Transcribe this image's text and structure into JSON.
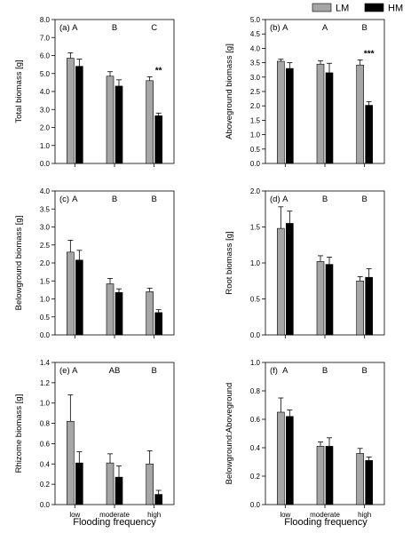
{
  "legend": {
    "placement": "top-right",
    "entries": [
      {
        "label": "LM",
        "color": "#a6a6a6"
      },
      {
        "label": "HM",
        "color": "#000000"
      }
    ]
  },
  "x_axis_title": "Flooding frequency",
  "chart_data": [
    {
      "type": "bar",
      "panel": "(a)",
      "ylabel": "Total biomass [g]",
      "ylim": [
        0,
        8
      ],
      "yticks": [
        "0.0",
        "1.0",
        "2.0",
        "3.0",
        "4.0",
        "5.0",
        "6.0",
        "7.0",
        "8.0"
      ],
      "categories": [
        "low",
        "moderate",
        "high"
      ],
      "show_category_labels": false,
      "letters": [
        "A",
        "B",
        "C"
      ],
      "significance": [
        "",
        "",
        "**"
      ],
      "series": [
        {
          "name": "LM",
          "color": "#a6a6a6",
          "values": [
            5.85,
            4.85,
            4.6
          ],
          "errors": [
            0.3,
            0.25,
            0.22
          ]
        },
        {
          "name": "HM",
          "color": "#000000",
          "values": [
            5.4,
            4.3,
            2.65
          ],
          "errors": [
            0.4,
            0.35,
            0.15
          ]
        }
      ]
    },
    {
      "type": "bar",
      "panel": "(b)",
      "ylabel": "Aboveground biomass [g]",
      "ylim": [
        0,
        5
      ],
      "yticks": [
        "0.0",
        "0.5",
        "1.0",
        "1.5",
        "2.0",
        "2.5",
        "3.0",
        "3.5",
        "4.0",
        "4.5",
        "5.0"
      ],
      "categories": [
        "low",
        "moderate",
        "high"
      ],
      "show_category_labels": false,
      "letters": [
        "A",
        "A",
        "B"
      ],
      "significance": [
        "",
        "",
        "***"
      ],
      "series": [
        {
          "name": "LM",
          "color": "#a6a6a6",
          "values": [
            3.55,
            3.45,
            3.42
          ],
          "errors": [
            0.07,
            0.12,
            0.18
          ]
        },
        {
          "name": "HM",
          "color": "#000000",
          "values": [
            3.3,
            3.15,
            2.02
          ],
          "errors": [
            0.2,
            0.33,
            0.13
          ]
        }
      ]
    },
    {
      "type": "bar",
      "panel": "(c)",
      "ylabel": "Belowground biomass [g]",
      "ylim": [
        0,
        4
      ],
      "yticks": [
        "0.0",
        "0.5",
        "1.0",
        "1.5",
        "2.0",
        "2.5",
        "3.0",
        "3.5",
        "4.0"
      ],
      "categories": [
        "low",
        "moderate",
        "high"
      ],
      "show_category_labels": false,
      "letters": [
        "A",
        "B",
        "B"
      ],
      "significance": [
        "",
        "",
        ""
      ],
      "series": [
        {
          "name": "LM",
          "color": "#a6a6a6",
          "values": [
            2.3,
            1.42,
            1.2
          ],
          "errors": [
            0.33,
            0.15,
            0.1
          ]
        },
        {
          "name": "HM",
          "color": "#000000",
          "values": [
            2.08,
            1.18,
            0.62
          ],
          "errors": [
            0.27,
            0.1,
            0.08
          ]
        }
      ]
    },
    {
      "type": "bar",
      "panel": "(d)",
      "ylabel": "Root biomass [g]",
      "ylim": [
        0,
        2
      ],
      "yticks": [
        "0.0",
        "0.5",
        "1.0",
        "1.5",
        "2.0"
      ],
      "categories": [
        "low",
        "moderate",
        "high"
      ],
      "show_category_labels": false,
      "letters": [
        "A",
        "B",
        "B"
      ],
      "significance": [
        "",
        "",
        ""
      ],
      "series": [
        {
          "name": "LM",
          "color": "#a6a6a6",
          "values": [
            1.48,
            1.02,
            0.75
          ],
          "errors": [
            0.3,
            0.08,
            0.06
          ]
        },
        {
          "name": "HM",
          "color": "#000000",
          "values": [
            1.55,
            0.98,
            0.8
          ],
          "errors": [
            0.17,
            0.1,
            0.12
          ]
        }
      ]
    },
    {
      "type": "bar",
      "panel": "(e)",
      "ylabel": "Rhizome biomass [g]",
      "ylim": [
        0,
        1.4
      ],
      "yticks": [
        "0.0",
        "0.2",
        "0.4",
        "0.6",
        "0.8",
        "1.0",
        "1.2",
        "1.4"
      ],
      "categories": [
        "low",
        "moderate",
        "high"
      ],
      "show_category_labels": true,
      "letters": [
        "A",
        "AB",
        "B"
      ],
      "significance": [
        "",
        "",
        ""
      ],
      "series": [
        {
          "name": "LM",
          "color": "#a6a6a6",
          "values": [
            0.82,
            0.41,
            0.4
          ],
          "errors": [
            0.26,
            0.09,
            0.13
          ]
        },
        {
          "name": "HM",
          "color": "#000000",
          "values": [
            0.41,
            0.27,
            0.1
          ],
          "errors": [
            0.11,
            0.11,
            0.04
          ]
        }
      ]
    },
    {
      "type": "bar",
      "panel": "(f)",
      "ylabel": "Belowground:Aboveground",
      "ylim": [
        0,
        1.0
      ],
      "yticks": [
        "0.0",
        "0.2",
        "0.4",
        "0.6",
        "0.8",
        "1.0"
      ],
      "categories": [
        "low",
        "moderate",
        "high"
      ],
      "show_category_labels": true,
      "letters": [
        "A",
        "B",
        "B"
      ],
      "significance": [
        "",
        "",
        ""
      ],
      "series": [
        {
          "name": "LM",
          "color": "#a6a6a6",
          "values": [
            0.65,
            0.41,
            0.36
          ],
          "errors": [
            0.1,
            0.03,
            0.035
          ]
        },
        {
          "name": "HM",
          "color": "#000000",
          "values": [
            0.62,
            0.41,
            0.31
          ],
          "errors": [
            0.045,
            0.06,
            0.025
          ]
        }
      ]
    }
  ]
}
